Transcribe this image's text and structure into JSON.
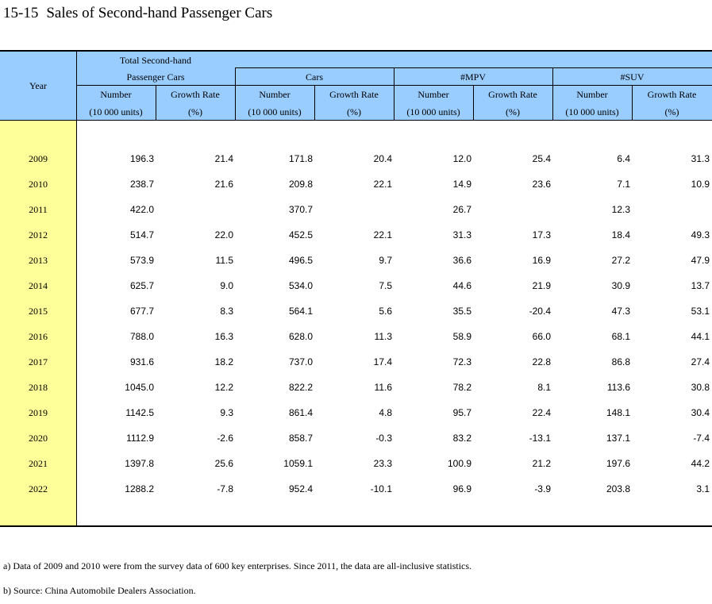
{
  "title": {
    "number": "15-15",
    "text": "Sales of Second-hand Passenger Cars"
  },
  "header": {
    "year": "Year",
    "groups": [
      {
        "line1": "Total Second-hand",
        "line2": "Passenger Cars"
      },
      {
        "line2": "Cars"
      },
      {
        "line2": "#MPV"
      },
      {
        "line2": "#SUV"
      }
    ],
    "number_label": "Number",
    "number_unit": "(10 000 units)",
    "growth_label": "Growth Rate",
    "growth_unit": "(%)"
  },
  "rows": [
    {
      "year": "2009",
      "total_num": "196.3",
      "total_gr": "21.4",
      "cars_num": "171.8",
      "cars_gr": "20.4",
      "mpv_num": "12.0",
      "mpv_gr": "25.4",
      "suv_num": "6.4",
      "suv_gr": "31.3"
    },
    {
      "year": "2010",
      "total_num": "238.7",
      "total_gr": "21.6",
      "cars_num": "209.8",
      "cars_gr": "22.1",
      "mpv_num": "14.9",
      "mpv_gr": "23.6",
      "suv_num": "7.1",
      "suv_gr": "10.9"
    },
    {
      "year": "2011",
      "total_num": "422.0",
      "total_gr": "",
      "cars_num": "370.7",
      "cars_gr": "",
      "mpv_num": "26.7",
      "mpv_gr": "",
      "suv_num": "12.3",
      "suv_gr": ""
    },
    {
      "year": "2012",
      "total_num": "514.7",
      "total_gr": "22.0",
      "cars_num": "452.5",
      "cars_gr": "22.1",
      "mpv_num": "31.3",
      "mpv_gr": "17.3",
      "suv_num": "18.4",
      "suv_gr": "49.3"
    },
    {
      "year": "2013",
      "total_num": "573.9",
      "total_gr": "11.5",
      "cars_num": "496.5",
      "cars_gr": "9.7",
      "mpv_num": "36.6",
      "mpv_gr": "16.9",
      "suv_num": "27.2",
      "suv_gr": "47.9"
    },
    {
      "year": "2014",
      "total_num": "625.7",
      "total_gr": "9.0",
      "cars_num": "534.0",
      "cars_gr": "7.5",
      "mpv_num": "44.6",
      "mpv_gr": "21.9",
      "suv_num": "30.9",
      "suv_gr": "13.7"
    },
    {
      "year": "2015",
      "total_num": "677.7",
      "total_gr": "8.3",
      "cars_num": "564.1",
      "cars_gr": "5.6",
      "mpv_num": "35.5",
      "mpv_gr": "-20.4",
      "suv_num": "47.3",
      "suv_gr": "53.1"
    },
    {
      "year": "2016",
      "total_num": "788.0",
      "total_gr": "16.3",
      "cars_num": "628.0",
      "cars_gr": "11.3",
      "mpv_num": "58.9",
      "mpv_gr": "66.0",
      "suv_num": "68.1",
      "suv_gr": "44.1"
    },
    {
      "year": "2017",
      "total_num": "931.6",
      "total_gr": "18.2",
      "cars_num": "737.0",
      "cars_gr": "17.4",
      "mpv_num": "72.3",
      "mpv_gr": "22.8",
      "suv_num": "86.8",
      "suv_gr": "27.4"
    },
    {
      "year": "2018",
      "total_num": "1045.0",
      "total_gr": "12.2",
      "cars_num": "822.2",
      "cars_gr": "11.6",
      "mpv_num": "78.2",
      "mpv_gr": "8.1",
      "suv_num": "113.6",
      "suv_gr": "30.8"
    },
    {
      "year": "2019",
      "total_num": "1142.5",
      "total_gr": "9.3",
      "cars_num": "861.4",
      "cars_gr": "4.8",
      "mpv_num": "95.7",
      "mpv_gr": "22.4",
      "suv_num": "148.1",
      "suv_gr": "30.4"
    },
    {
      "year": "2020",
      "total_num": "1112.9",
      "total_gr": "-2.6",
      "cars_num": "858.7",
      "cars_gr": "-0.3",
      "mpv_num": "83.2",
      "mpv_gr": "-13.1",
      "suv_num": "137.1",
      "suv_gr": "-7.4"
    },
    {
      "year": "2021",
      "total_num": "1397.8",
      "total_gr": "25.6",
      "cars_num": "1059.1",
      "cars_gr": "23.3",
      "mpv_num": "100.9",
      "mpv_gr": "21.2",
      "suv_num": "197.6",
      "suv_gr": "44.2"
    },
    {
      "year": "2022",
      "total_num": "1288.2",
      "total_gr": "-7.8",
      "cars_num": "952.4",
      "cars_gr": "-10.1",
      "mpv_num": "96.9",
      "mpv_gr": "-3.9",
      "suv_num": "203.8",
      "suv_gr": "3.1"
    }
  ],
  "notes": [
    "a) Data of 2009 and 2010 were from the survey data of 600 key enterprises. Since 2011, the data are all-inclusive statistics.",
    "b) Source: China Automobile Dealers Association."
  ]
}
